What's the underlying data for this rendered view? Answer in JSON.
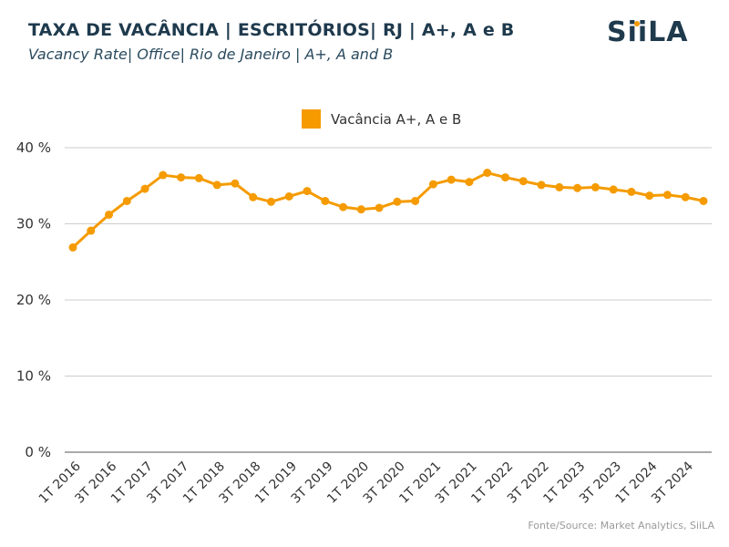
{
  "header": {
    "title": "TAXA DE VACÂNCIA | ESCRITÓRIOS| RJ | A+, A e B",
    "subtitle": "Vacancy Rate| Office| Rio de Janeiro | A+, A and B",
    "logo_text": "SiiLA"
  },
  "footer": {
    "source": "Fonte/Source: Market Analytics, SiiLA"
  },
  "colors": {
    "series": "#f59b00",
    "title": "#1f3a4d",
    "grid": "#cccccc",
    "axis": "#555555"
  },
  "chart_data": {
    "type": "line",
    "title": "",
    "xlabel": "",
    "ylabel": "",
    "ylim": [
      0,
      40
    ],
    "yticks": [
      0,
      10,
      20,
      30,
      40
    ],
    "ytick_labels": [
      "0 %",
      "10 %",
      "20 %",
      "30 %",
      "40 %"
    ],
    "grid": true,
    "legend_position": "top-center",
    "categories": [
      "1T 2016",
      "2T 2016",
      "3T 2016",
      "4T 2016",
      "1T 2017",
      "2T 2017",
      "3T 2017",
      "4T 2017",
      "1T 2018",
      "2T 2018",
      "3T 2018",
      "4T 2018",
      "1T 2019",
      "2T 2019",
      "3T 2019",
      "4T 2019",
      "1T 2020",
      "2T 2020",
      "3T 2020",
      "4T 2020",
      "1T 2021",
      "2T 2021",
      "3T 2021",
      "4T 2021",
      "1T 2022",
      "2T 2022",
      "3T 2022",
      "4T 2022",
      "1T 2023",
      "2T 2023",
      "3T 2023",
      "4T 2023",
      "1T 2024",
      "2T 2024",
      "3T 2024",
      "4T 2024"
    ],
    "x_tick_labels": [
      "1T 2016",
      "3T 2016",
      "1T 2017",
      "3T 2017",
      "1T 2018",
      "3T 2018",
      "1T 2019",
      "3T 2019",
      "1T 2020",
      "3T 2020",
      "1T 2021",
      "3T 2021",
      "1T 2022",
      "3T 2022",
      "1T 2023",
      "3T 2023",
      "1T 2024",
      "3T 2024"
    ],
    "series": [
      {
        "name": "Vacância A+, A e B",
        "values": [
          26.9,
          29.1,
          31.2,
          33.0,
          34.6,
          36.4,
          36.1,
          36.0,
          35.1,
          35.3,
          33.5,
          32.9,
          33.6,
          34.3,
          33.0,
          32.2,
          31.9,
          32.1,
          32.9,
          33.0,
          35.2,
          35.8,
          35.5,
          36.7,
          36.1,
          35.6,
          35.1,
          34.8,
          34.7,
          34.8,
          34.5,
          34.2,
          33.7,
          33.8,
          33.5,
          33.0
        ]
      }
    ]
  }
}
